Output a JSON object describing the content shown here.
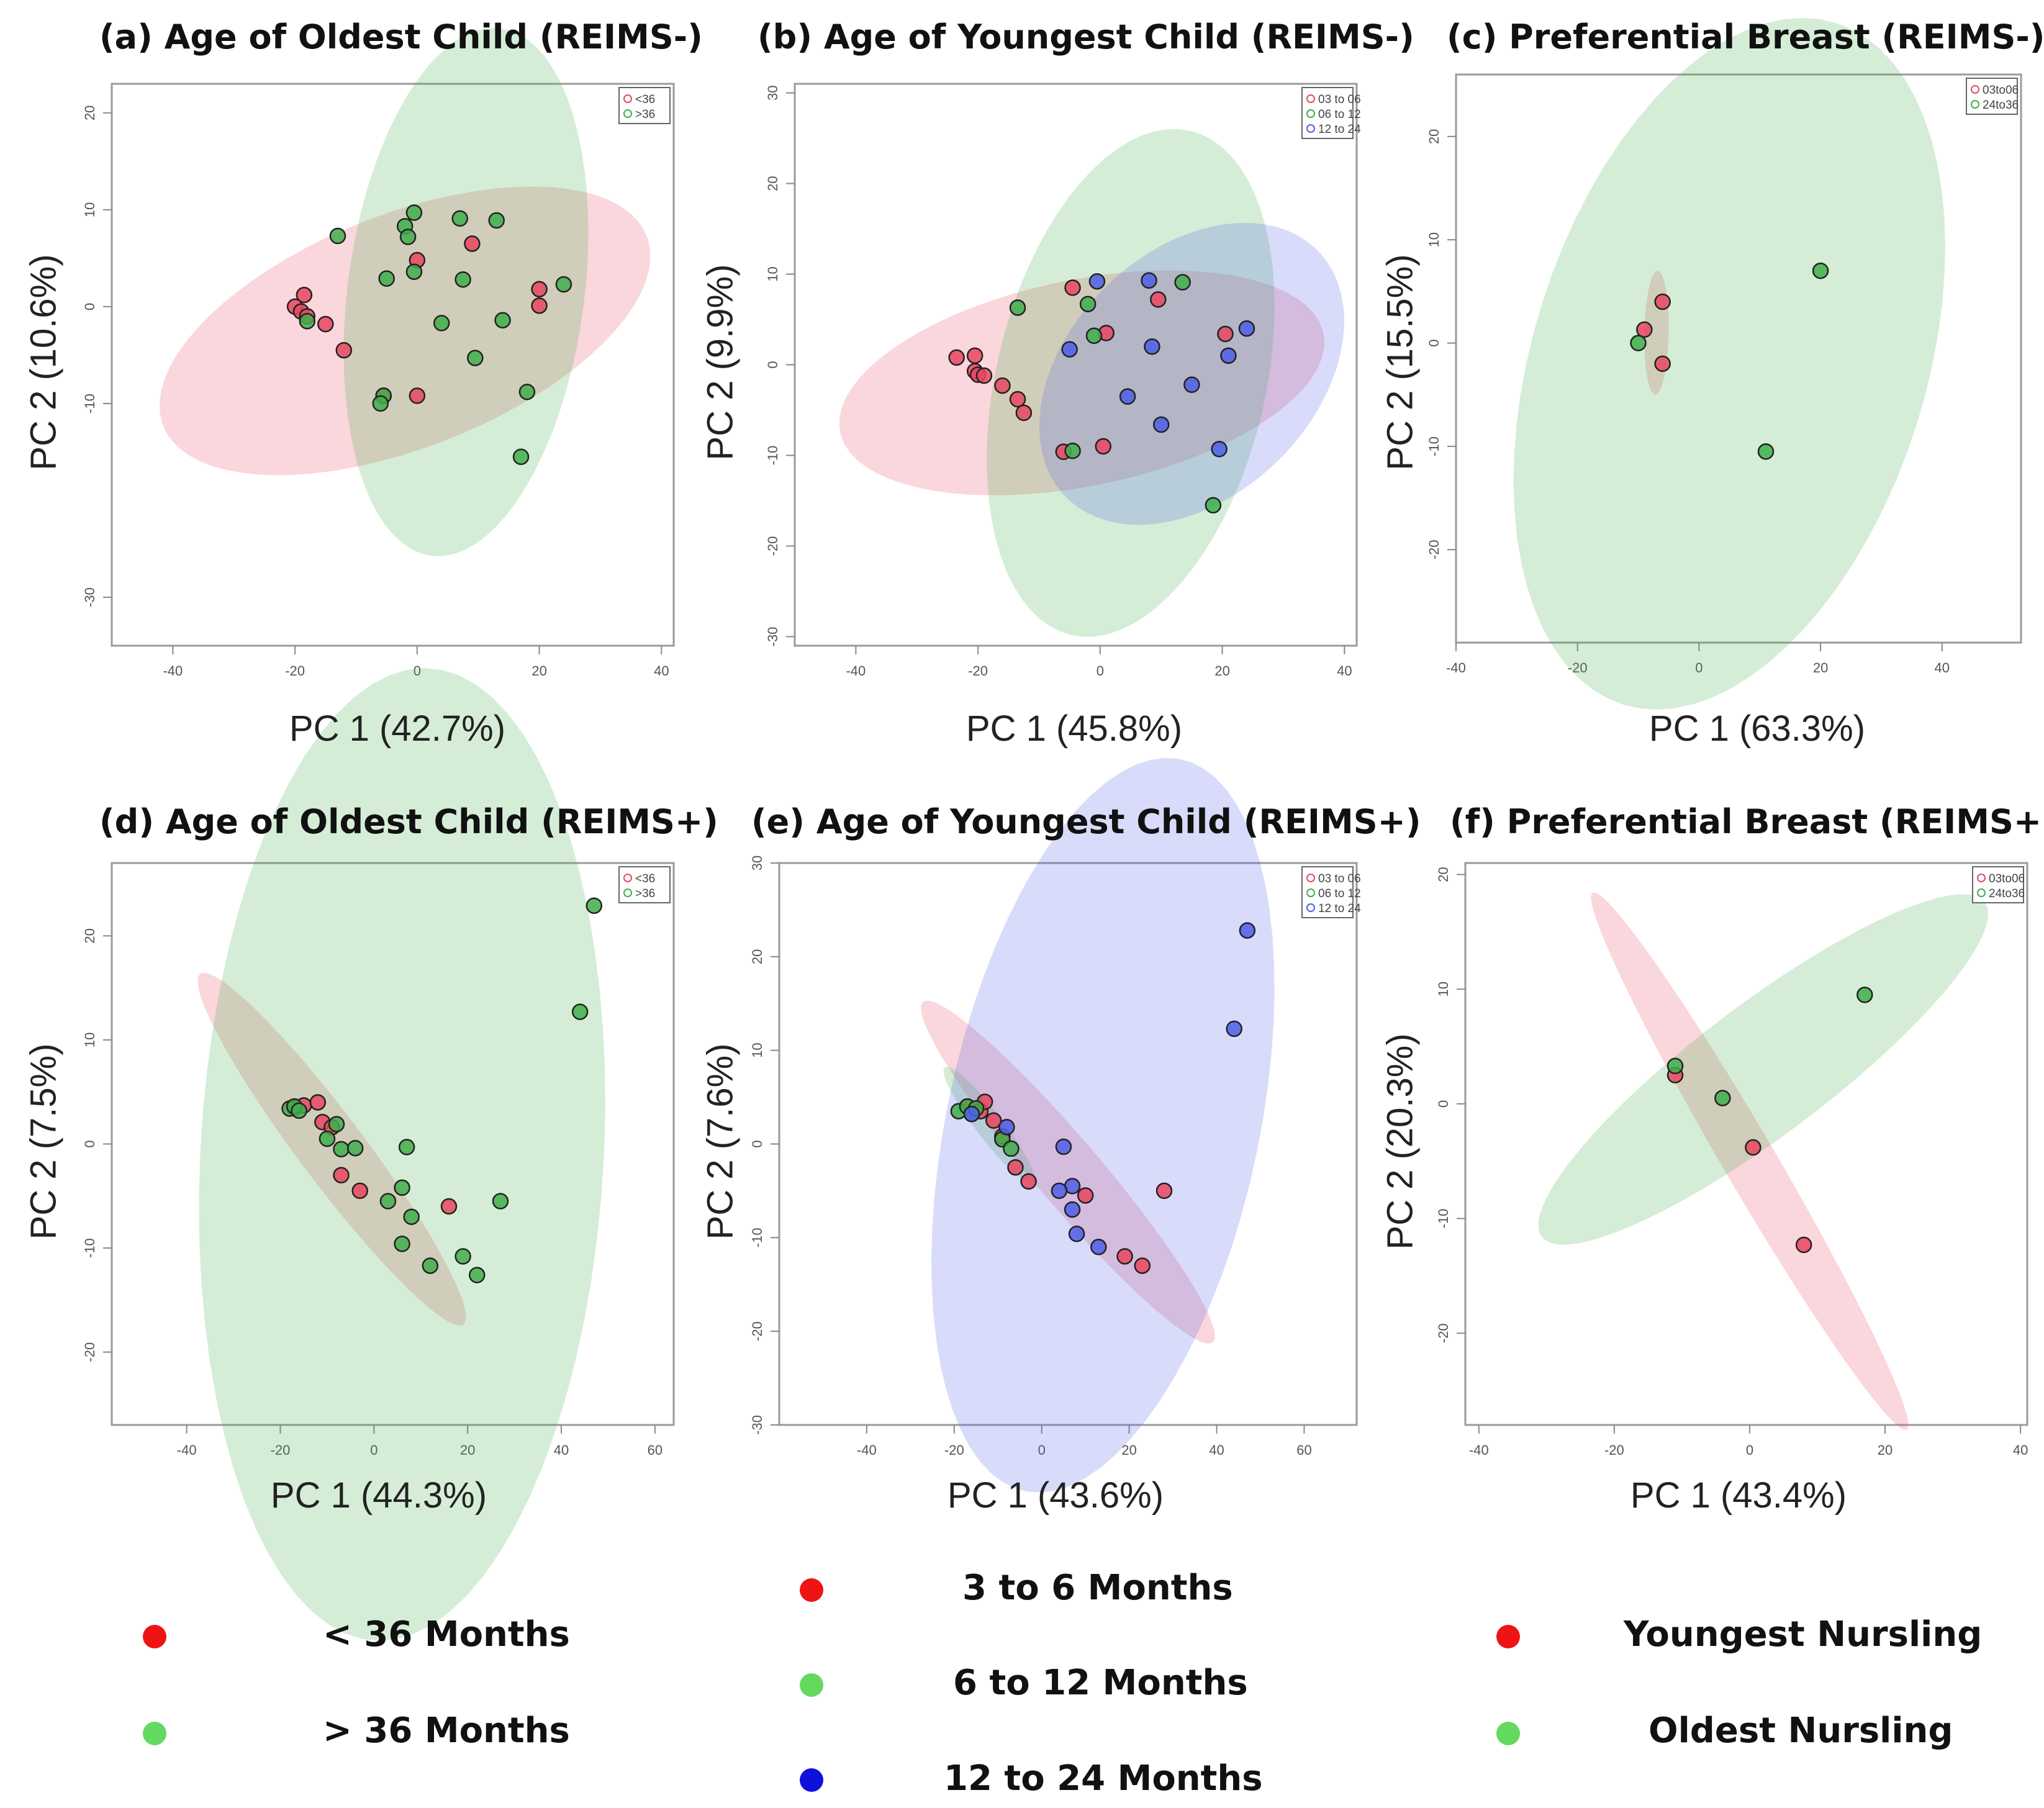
{
  "chart_data": [
    {
      "type": "scatter",
      "id": "a",
      "title": "(a) Age of Oldest Child (REIMS-)",
      "xlabel": "PC 1 (42.7%)",
      "ylabel": "PC 2 (10.6%)",
      "xlim": [
        -50,
        42
      ],
      "ylim": [
        -35,
        23
      ],
      "xticks": [
        "-40",
        "-20",
        "0",
        "20",
        "40"
      ],
      "xtick_values": [
        -40,
        -20,
        0,
        20,
        40
      ],
      "yticks": [
        "-30",
        "-10",
        "0",
        "10",
        "20"
      ],
      "ytick_values": [
        -30,
        -10,
        0,
        10,
        20
      ],
      "legend": [
        "<36",
        ">36"
      ],
      "series": [
        {
          "name": "<36",
          "color": "#e8475f",
          "points": [
            [
              -20,
              0
            ],
            [
              -19,
              -0.5
            ],
            [
              -18.5,
              1.2
            ],
            [
              -18,
              -1
            ],
            [
              -15,
              -1.8
            ],
            [
              -12,
              -4.5
            ],
            [
              0,
              4.8
            ],
            [
              9,
              6.5
            ],
            [
              20,
              1.8
            ],
            [
              20,
              0.1
            ],
            [
              -5.5,
              -9.2
            ],
            [
              0,
              -9.2
            ]
          ],
          "ellipse": {
            "cx": -2,
            "cy": -2.5,
            "rx": 41,
            "ry": 12.5,
            "angle": 12
          }
        },
        {
          "name": ">36",
          "color": "#3fae4a",
          "points": [
            [
              -13,
              7.3
            ],
            [
              -2,
              8.3
            ],
            [
              -1.5,
              7.2
            ],
            [
              -0.5,
              9.7
            ],
            [
              -0.5,
              3.6
            ],
            [
              -5,
              2.9
            ],
            [
              7,
              9.1
            ],
            [
              13,
              8.9
            ],
            [
              7.5,
              2.8
            ],
            [
              4,
              -1.7
            ],
            [
              14,
              -1.4
            ],
            [
              24,
              2.3
            ],
            [
              9.5,
              -5.3
            ],
            [
              18,
              -8.8
            ],
            [
              -5.5,
              -9.2
            ],
            [
              -6,
              -10
            ],
            [
              17,
              -15.5
            ],
            [
              -18,
              -1.5
            ]
          ],
          "ellipse": {
            "cx": 8,
            "cy": 1.5,
            "rx": 28,
            "ry": 19,
            "angle": 72
          }
        }
      ]
    },
    {
      "type": "scatter",
      "id": "b",
      "title": "(b) Age of Youngest Child (REIMS-)",
      "xlabel": "PC 1 (45.8%)",
      "ylabel": "PC 2 (9.9%)",
      "xlim": [
        -50,
        42
      ],
      "ylim": [
        -31,
        31
      ],
      "xticks": [
        "-40",
        "-20",
        "0",
        "20",
        "40"
      ],
      "xtick_values": [
        -40,
        -20,
        0,
        20,
        40
      ],
      "yticks": [
        "-30",
        "-20",
        "-10",
        "0",
        "10",
        "20",
        "30"
      ],
      "ytick_values": [
        -30,
        -20,
        -10,
        0,
        10,
        20,
        30
      ],
      "legend": [
        "03 to 06",
        "06 to 12",
        "12 to 24"
      ],
      "series": [
        {
          "name": "03 to 06",
          "color": "#e8475f",
          "points": [
            [
              -23.5,
              0.8
            ],
            [
              -20.5,
              1
            ],
            [
              -20.5,
              -0.7
            ],
            [
              -20,
              -1.1
            ],
            [
              -19,
              -1.2
            ],
            [
              -16,
              -2.3
            ],
            [
              -13.5,
              -3.8
            ],
            [
              -12.5,
              -5.3
            ],
            [
              -6,
              -9.6
            ],
            [
              0.5,
              -9
            ],
            [
              -4.5,
              8.5
            ],
            [
              1,
              3.5
            ],
            [
              9.5,
              7.2
            ],
            [
              20.5,
              3.4
            ]
          ],
          "ellipse": {
            "cx": -3,
            "cy": -2,
            "rx": 40,
            "ry": 11.5,
            "angle": 7
          }
        },
        {
          "name": "06 to 12",
          "color": "#3fae4a",
          "points": [
            [
              -13.5,
              6.3
            ],
            [
              -2,
              6.7
            ],
            [
              -1,
              3.2
            ],
            [
              13.5,
              9.1
            ],
            [
              18.5,
              -15.5
            ],
            [
              -4.5,
              -9.5
            ]
          ],
          "ellipse": {
            "cx": 5,
            "cy": -2,
            "rx": 30,
            "ry": 21,
            "angle": 60
          }
        },
        {
          "name": "12 to 24",
          "color": "#4d5ee8",
          "points": [
            [
              -5,
              1.7
            ],
            [
              -0.5,
              9.2
            ],
            [
              8,
              9.3
            ],
            [
              8.5,
              2
            ],
            [
              15,
              -2.2
            ],
            [
              4.5,
              -3.5
            ],
            [
              10,
              -6.6
            ],
            [
              19.5,
              -9.3
            ],
            [
              21,
              1
            ],
            [
              24,
              4
            ]
          ],
          "ellipse": {
            "cx": 15,
            "cy": -1,
            "rx": 26,
            "ry": 15,
            "angle": 20
          }
        }
      ]
    },
    {
      "type": "scatter",
      "id": "c",
      "title": "(c) Preferential Breast (REIMS-)",
      "xlabel": "PC 1 (63.3%)",
      "ylabel": "PC 2 (15.5%)",
      "xlim": [
        -40,
        53
      ],
      "ylim": [
        -29,
        26
      ],
      "xticks": [
        "-40",
        "-20",
        "0",
        "20",
        "40"
      ],
      "xtick_values": [
        -40,
        -20,
        0,
        20,
        40
      ],
      "yticks": [
        "-20",
        "-10",
        "0",
        "10",
        "20"
      ],
      "ytick_values": [
        -20,
        -10,
        0,
        10,
        20
      ],
      "legend": [
        "03to06",
        "24to36"
      ],
      "series": [
        {
          "name": "03to06",
          "color": "#e8475f",
          "points": [
            [
              -9,
              1.3
            ],
            [
              -6,
              4
            ],
            [
              -6,
              -2
            ]
          ],
          "ellipse": {
            "cx": -7,
            "cy": 1,
            "rx": 6,
            "ry": 2,
            "angle": 88
          }
        },
        {
          "name": "24to36",
          "color": "#3fae4a",
          "points": [
            [
              -10,
              0
            ],
            [
              20,
              7
            ],
            [
              11,
              -10.5
            ]
          ],
          "ellipse": {
            "cx": 5,
            "cy": -2,
            "rx": 40,
            "ry": 28,
            "angle": 40
          }
        }
      ]
    },
    {
      "type": "scatter",
      "id": "d",
      "title": "(d) Age of Oldest Child (REIMS+)",
      "xlabel": "PC 1 (44.3%)",
      "ylabel": "PC 2 (7.5%)",
      "xlim": [
        -56,
        64
      ],
      "ylim": [
        -27,
        27
      ],
      "xticks": [
        "-40",
        "-20",
        "0",
        "20",
        "40",
        "60"
      ],
      "xtick_values": [
        -40,
        -20,
        0,
        20,
        40,
        60
      ],
      "yticks": [
        "-20",
        "-10",
        "0",
        "10",
        "20"
      ],
      "ytick_values": [
        -20,
        -10,
        0,
        10,
        20
      ],
      "legend": [
        "<36",
        ">36"
      ],
      "series": [
        {
          "name": "<36",
          "color": "#e8475f",
          "points": [
            [
              -17,
              3.5
            ],
            [
              -15,
              3.7
            ],
            [
              -12,
              4
            ],
            [
              -11,
              2.1
            ],
            [
              -9,
              1.6
            ],
            [
              -7,
              -3
            ],
            [
              -3,
              -4.5
            ],
            [
              16,
              -6
            ]
          ],
          "ellipse": {
            "cx": -9,
            "cy": -0.5,
            "rx": 33,
            "ry": 4.5,
            "angle": -30
          }
        },
        {
          "name": ">36",
          "color": "#3fae4a",
          "points": [
            [
              -18,
              3.4
            ],
            [
              -17,
              3.6
            ],
            [
              -16,
              3.2
            ],
            [
              -8,
              1.9
            ],
            [
              -10,
              0.5
            ],
            [
              -7,
              -0.5
            ],
            [
              -4,
              -0.4
            ],
            [
              7,
              -0.3
            ],
            [
              3,
              -5.5
            ],
            [
              6,
              -4.2
            ],
            [
              8,
              -7
            ],
            [
              6,
              -9.6
            ],
            [
              12,
              -11.7
            ],
            [
              19,
              -10.8
            ],
            [
              22,
              -12.6
            ],
            [
              27,
              -5.5
            ],
            [
              44,
              12.7
            ],
            [
              47,
              22.9
            ]
          ],
          "ellipse": {
            "cx": 6,
            "cy": -1,
            "rx": 48,
            "ry": 42,
            "angle": 62
          }
        }
      ]
    },
    {
      "type": "scatter",
      "id": "e",
      "title": "(e) Age of Youngest Child (REIMS+)",
      "xlabel": "PC 1 (43.6%)",
      "ylabel": "PC 2 (7.6%)",
      "xlim": [
        -60,
        72
      ],
      "ylim": [
        -30,
        30
      ],
      "xticks": [
        "-40",
        "-20",
        "0",
        "20",
        "40",
        "60"
      ],
      "xtick_values": [
        -40,
        -20,
        0,
        20,
        40,
        60
      ],
      "yticks": [
        "-30",
        "-20",
        "-10",
        "0",
        "10",
        "20",
        "30"
      ],
      "ytick_values": [
        -30,
        -20,
        -10,
        0,
        10,
        20,
        30
      ],
      "legend": [
        "03 to 06",
        "06 to 12",
        "12 to 24"
      ],
      "series": [
        {
          "name": "03 to 06",
          "color": "#e8475f",
          "points": [
            [
              -17,
              4
            ],
            [
              -14,
              3.5
            ],
            [
              -13,
              4.5
            ],
            [
              -11,
              2.5
            ],
            [
              -9,
              0.8
            ],
            [
              -6,
              -2.5
            ],
            [
              -3,
              -4
            ],
            [
              10,
              -5.5
            ],
            [
              19,
              -12
            ],
            [
              23,
              -13
            ],
            [
              28,
              -5
            ]
          ],
          "ellipse": {
            "cx": 6,
            "cy": -3,
            "rx": 38,
            "ry": 4.7,
            "angle": -28
          }
        },
        {
          "name": "06 to 12",
          "color": "#3fae4a",
          "points": [
            [
              -19,
              3.5
            ],
            [
              -17,
              4
            ],
            [
              -16,
              3.2
            ],
            [
              -15,
              3.8
            ],
            [
              -9,
              0.5
            ],
            [
              -7,
              -0.5
            ]
          ],
          "ellipse": {
            "cx": -12,
            "cy": 2,
            "rx": 12,
            "ry": 2,
            "angle": -30
          }
        },
        {
          "name": "12 to 24",
          "color": "#4d5ee8",
          "points": [
            [
              -16,
              3.2
            ],
            [
              -8,
              1.8
            ],
            [
              5,
              -0.3
            ],
            [
              7,
              -4.5
            ],
            [
              4,
              -5
            ],
            [
              7,
              -7
            ],
            [
              8,
              -9.6
            ],
            [
              13,
              -11
            ],
            [
              44,
              12.3
            ],
            [
              47,
              22.8
            ]
          ],
          "ellipse": {
            "cx": 14,
            "cy": 2,
            "rx": 46,
            "ry": 31,
            "angle": 45
          }
        }
      ]
    },
    {
      "type": "scatter",
      "id": "f",
      "title": "(f) Preferential Breast (REIMS+)",
      "xlabel": "PC 1 (43.4%)",
      "ylabel": "PC 2 (20.3%)",
      "xlim": [
        -42,
        41
      ],
      "ylim": [
        -28,
        21
      ],
      "xticks": [
        "-40",
        "-20",
        "0",
        "20",
        "40"
      ],
      "xtick_values": [
        -40,
        -20,
        0,
        20,
        40
      ],
      "yticks": [
        "-20",
        "-10",
        "0",
        "10",
        "20"
      ],
      "ytick_values": [
        -20,
        -10,
        0,
        10,
        20
      ],
      "legend": [
        "03to06",
        "24to36"
      ],
      "series": [
        {
          "name": "03to06",
          "color": "#e8475f",
          "points": [
            [
              -11,
              2.5
            ],
            [
              0.5,
              -3.8
            ],
            [
              8,
              -12.3
            ]
          ],
          "ellipse": {
            "cx": 0,
            "cy": -5,
            "rx": 33,
            "ry": 3.2,
            "angle": -45
          }
        },
        {
          "name": "24to36",
          "color": "#3fae4a",
          "points": [
            [
              -11,
              3.3
            ],
            [
              -4,
              0.5
            ],
            [
              17,
              9.5
            ]
          ],
          "ellipse": {
            "cx": 2,
            "cy": 3,
            "rx": 36,
            "ry": 6.5,
            "angle": 23
          }
        }
      ]
    }
  ],
  "legends": [
    {
      "entries": [
        {
          "label": "< 36 Months",
          "color": "#ef1414"
        },
        {
          "label": "> 36 Months",
          "color": "#63d960"
        }
      ]
    },
    {
      "entries": [
        {
          "label": "3 to 6 Months",
          "color": "#ef1414"
        },
        {
          "label": "6 to 12 Months",
          "color": "#63d960"
        },
        {
          "label": "12 to 24 Months",
          "color": "#1010dd"
        }
      ]
    },
    {
      "entries": [
        {
          "label": "Youngest Nursling",
          "color": "#ef1414"
        },
        {
          "label": "Oldest Nursling",
          "color": "#63d960"
        }
      ]
    }
  ]
}
